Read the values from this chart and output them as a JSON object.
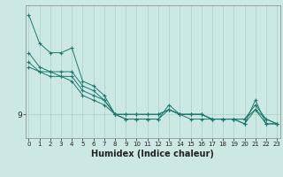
{
  "xlabel": "Humidex (Indice chaleur)",
  "bg_color": "#cce8e5",
  "line_color": "#1a7a6e",
  "grid_color": "#aacfca",
  "x_ticks": [
    0,
    1,
    2,
    3,
    4,
    5,
    6,
    7,
    8,
    9,
    10,
    11,
    12,
    13,
    14,
    15,
    16,
    17,
    18,
    19,
    20,
    21,
    22,
    23
  ],
  "y_tick_val": 9,
  "series": [
    [
      30,
      24,
      22,
      22,
      23,
      16,
      15,
      13,
      9,
      8,
      8,
      8,
      8,
      11,
      9,
      9,
      9,
      8,
      8,
      8,
      7,
      12,
      7,
      7
    ],
    [
      22,
      19,
      18,
      18,
      18,
      15,
      14,
      12,
      9,
      9,
      9,
      9,
      9,
      10,
      9,
      9,
      9,
      8,
      8,
      8,
      8,
      11,
      8,
      7
    ],
    [
      20,
      18,
      18,
      17,
      17,
      14,
      13,
      12,
      9,
      9,
      9,
      9,
      9,
      10,
      9,
      9,
      9,
      8,
      8,
      8,
      8,
      10,
      8,
      7
    ],
    [
      19,
      18,
      17,
      17,
      16,
      13,
      12,
      11,
      9,
      8,
      8,
      8,
      8,
      10,
      9,
      8,
      8,
      8,
      8,
      8,
      7,
      10,
      7,
      7
    ]
  ],
  "ylim_top": 32,
  "ylim_bottom": 4
}
